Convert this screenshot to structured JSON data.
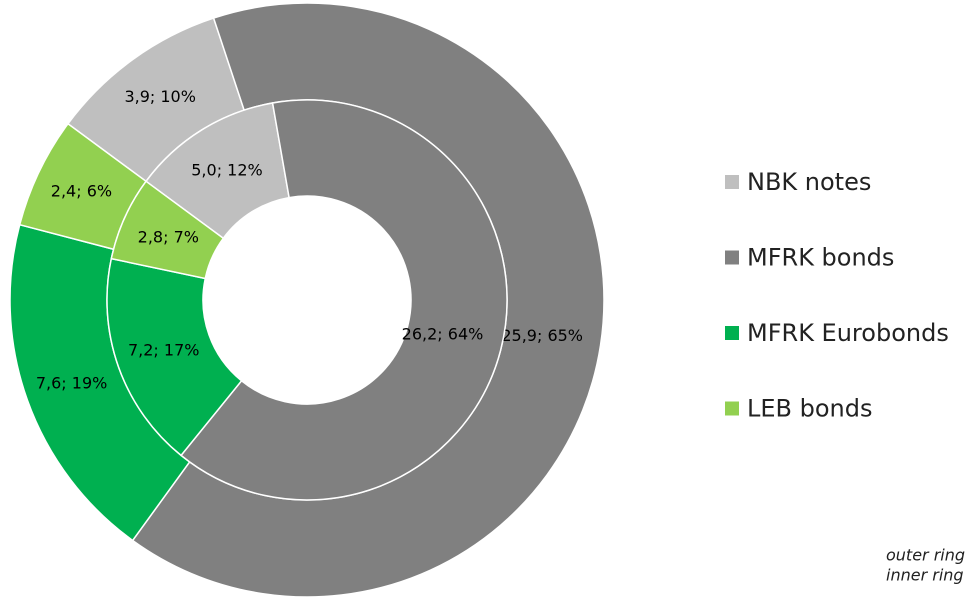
{
  "chart_data": {
    "type": "pie",
    "categories": [
      "NBK notes",
      "MFRK bonds",
      "MFRK Eurobonds",
      "LEB bonds"
    ],
    "colors": [
      "#bfbfbf",
      "#808080",
      "#00b050",
      "#92d050"
    ],
    "series": [
      {
        "values": [
          3.9,
          25.9,
          7.6,
          2.4
        ],
        "value_labels": [
          "3,9; 10%",
          "25,9; 65%",
          "7,6; 19%",
          "2,4; 6%"
        ]
      },
      {
        "values": [
          5.0,
          26.2,
          7.2,
          2.8
        ],
        "value_labels": [
          "5,0; 12%",
          "26,2; 64%",
          "7,2; 17%",
          "2,8; 7%"
        ]
      }
    ],
    "annotations": [
      "outer ring",
      "inner ring"
    ]
  }
}
